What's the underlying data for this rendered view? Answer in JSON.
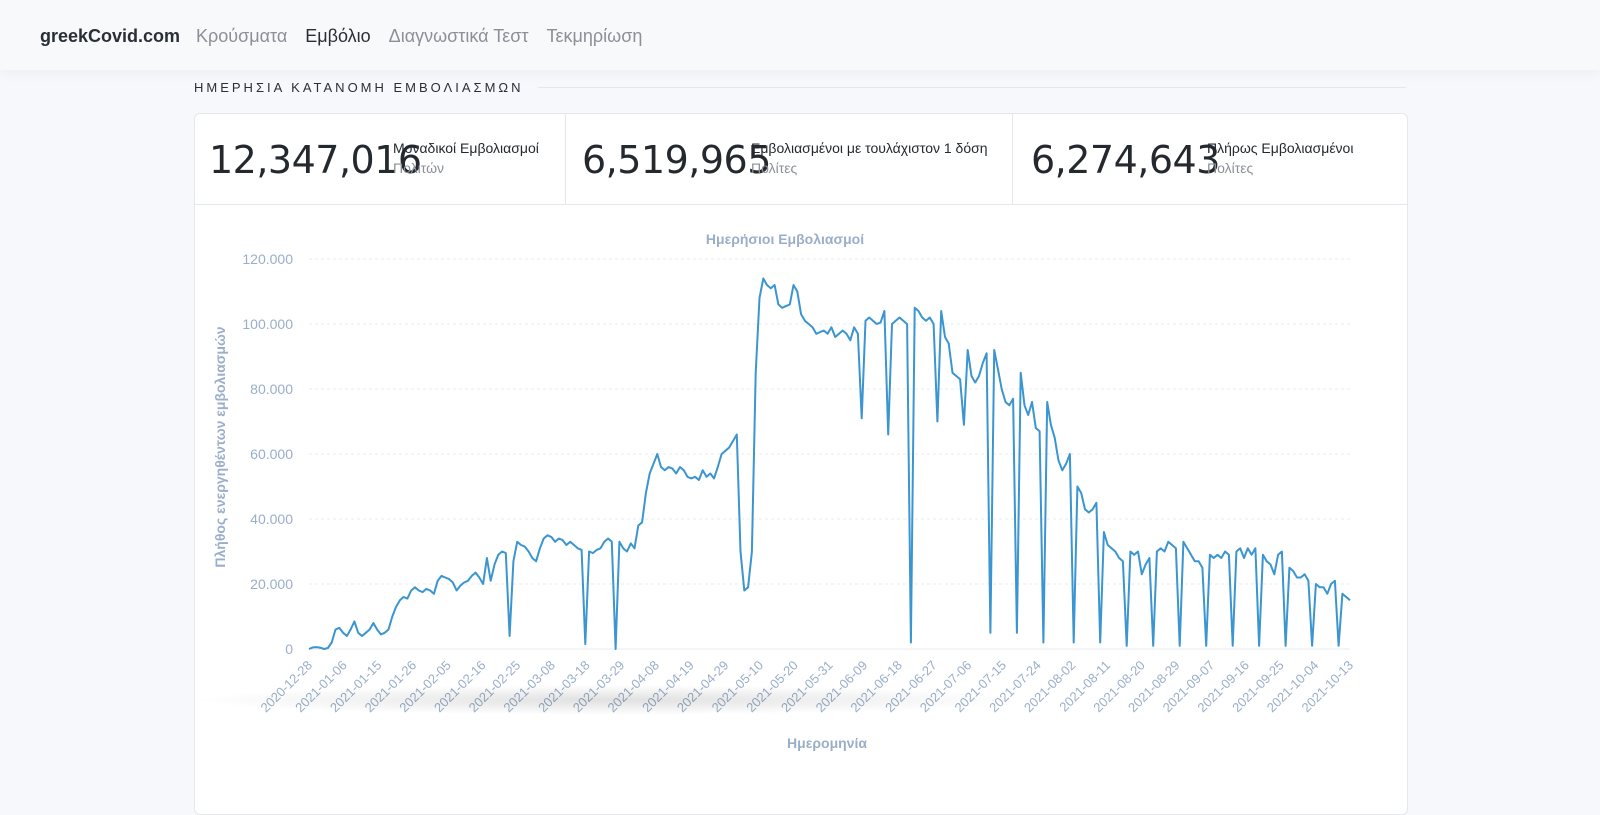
{
  "nav": {
    "brand": "greekCovid.com",
    "links": [
      "Κρούσματα",
      "Εμβόλιο",
      "Διαγνωστικά Τεστ",
      "Τεκμηρίωση"
    ],
    "active_index": 1
  },
  "section": {
    "title": "ΗΜΕΡΗΣΙΑ ΚΑΤΑΝΟΜΗ ΕΜΒΟΛΙΑΣΜΩΝ"
  },
  "stats": [
    {
      "value": "12,347,016",
      "label": "Μοναδικοί Εμβολιασμοί",
      "sub": "Πολιτών"
    },
    {
      "value": "6,519,965",
      "label": "Εμβολιασμένοι με τουλάχιστον 1 δόση",
      "sub": "Πολίτες"
    },
    {
      "value": "6,274,643",
      "label": "Πλήρως Εμβολιασμένοι",
      "sub": "Πολίτες"
    }
  ],
  "colors": {
    "line": "#3a95d0",
    "axis_text": "#9aaec9",
    "grid": "#e7ebf1"
  },
  "chart_data": {
    "type": "line",
    "title": "Ημερήσιοι Εμβολιασμοί",
    "xlabel": "Ημερομηνία",
    "ylabel": "Πλήθος ενεργηθέντων εμβολιασμών",
    "ylim": [
      0,
      120000
    ],
    "yticks": [
      0,
      20000,
      40000,
      60000,
      80000,
      100000,
      120000
    ],
    "ytick_labels": [
      "0",
      "20.000",
      "40.000",
      "60.000",
      "80.000",
      "100.000",
      "120.000"
    ],
    "xtick_labels": [
      "2020-12-28",
      "2021-01-06",
      "2021-01-15",
      "2021-01-26",
      "2021-02-05",
      "2021-02-16",
      "2021-02-25",
      "2021-03-08",
      "2021-03-18",
      "2021-03-29",
      "2021-04-08",
      "2021-04-19",
      "2021-04-29",
      "2021-05-10",
      "2021-05-20",
      "2021-05-31",
      "2021-06-09",
      "2021-06-18",
      "2021-06-27",
      "2021-07-06",
      "2021-07-15",
      "2021-07-24",
      "2021-08-02",
      "2021-08-11",
      "2021-08-20",
      "2021-08-29",
      "2021-09-07",
      "2021-09-16",
      "2021-09-25",
      "2021-10-04",
      "2021-10-13"
    ],
    "grid": true,
    "series": [
      {
        "values": [
          0,
          500,
          600,
          400,
          0,
          300,
          2000,
          6000,
          6500,
          5000,
          4000,
          6000,
          8500,
          5000,
          4000,
          5000,
          6000,
          8000,
          6000,
          4500,
          5000,
          6000,
          10000,
          13000,
          15000,
          16000,
          15500,
          18000,
          19000,
          18000,
          17500,
          18500,
          18000,
          17000,
          21000,
          22500,
          22000,
          21500,
          20500,
          18000,
          19500,
          20500,
          21000,
          22500,
          23500,
          22000,
          20000,
          28000,
          21000,
          26000,
          29000,
          30000,
          29500,
          4000,
          27000,
          33000,
          32000,
          31500,
          30000,
          28000,
          27000,
          31000,
          34000,
          35000,
          34500,
          33000,
          34000,
          33500,
          32000,
          33000,
          32000,
          31000,
          30500,
          1500,
          30000,
          29500,
          30500,
          31000,
          33000,
          34000,
          33000,
          0,
          33000,
          31000,
          30000,
          32500,
          31000,
          38000,
          39000,
          48000,
          54000,
          57000,
          60000,
          56000,
          55000,
          56000,
          55500,
          54000,
          56000,
          55000,
          53000,
          52500,
          53000,
          52000,
          55000,
          53000,
          54000,
          52500,
          56000,
          60000,
          61000,
          62000,
          64000,
          66000,
          30000,
          18000,
          19000,
          30000,
          85000,
          108000,
          114000,
          112000,
          111000,
          112000,
          106000,
          105000,
          105500,
          106000,
          112000,
          110000,
          103000,
          101000,
          100000,
          99000,
          97000,
          97500,
          98000,
          97000,
          99000,
          96000,
          97000,
          98000,
          97000,
          95000,
          99000,
          97000,
          71000,
          101000,
          102000,
          101000,
          100000,
          100500,
          104000,
          66000,
          100000,
          101000,
          102000,
          101000,
          100000,
          2000,
          105000,
          104000,
          102000,
          101000,
          102000,
          100000,
          70000,
          104000,
          96000,
          94000,
          85000,
          84000,
          83000,
          69000,
          92000,
          84000,
          82000,
          84000,
          88000,
          91000,
          5000,
          92000,
          86000,
          80000,
          76000,
          75000,
          77000,
          5000,
          85000,
          75000,
          72000,
          76000,
          68000,
          67000,
          2000,
          76000,
          69000,
          65000,
          58000,
          55000,
          57000,
          60000,
          2000,
          50000,
          48000,
          43000,
          42000,
          43000,
          45000,
          2000,
          36000,
          32000,
          31000,
          30000,
          28000,
          27000,
          1000,
          30000,
          29000,
          30000,
          23000,
          26000,
          28000,
          1000,
          30000,
          31000,
          30000,
          33000,
          32000,
          31000,
          1000,
          33000,
          31000,
          29000,
          27000,
          27000,
          25000,
          1000,
          29000,
          28000,
          29000,
          28000,
          30000,
          29000,
          1000,
          30000,
          31000,
          28000,
          31000,
          29000,
          31000,
          1000,
          29000,
          27000,
          26000,
          23000,
          29000,
          30000,
          1000,
          25000,
          24000,
          22000,
          22000,
          23000,
          21000,
          1000,
          20000,
          19000,
          19000,
          17000,
          20000,
          21000,
          1000,
          17000,
          16000,
          15000
        ]
      }
    ]
  }
}
